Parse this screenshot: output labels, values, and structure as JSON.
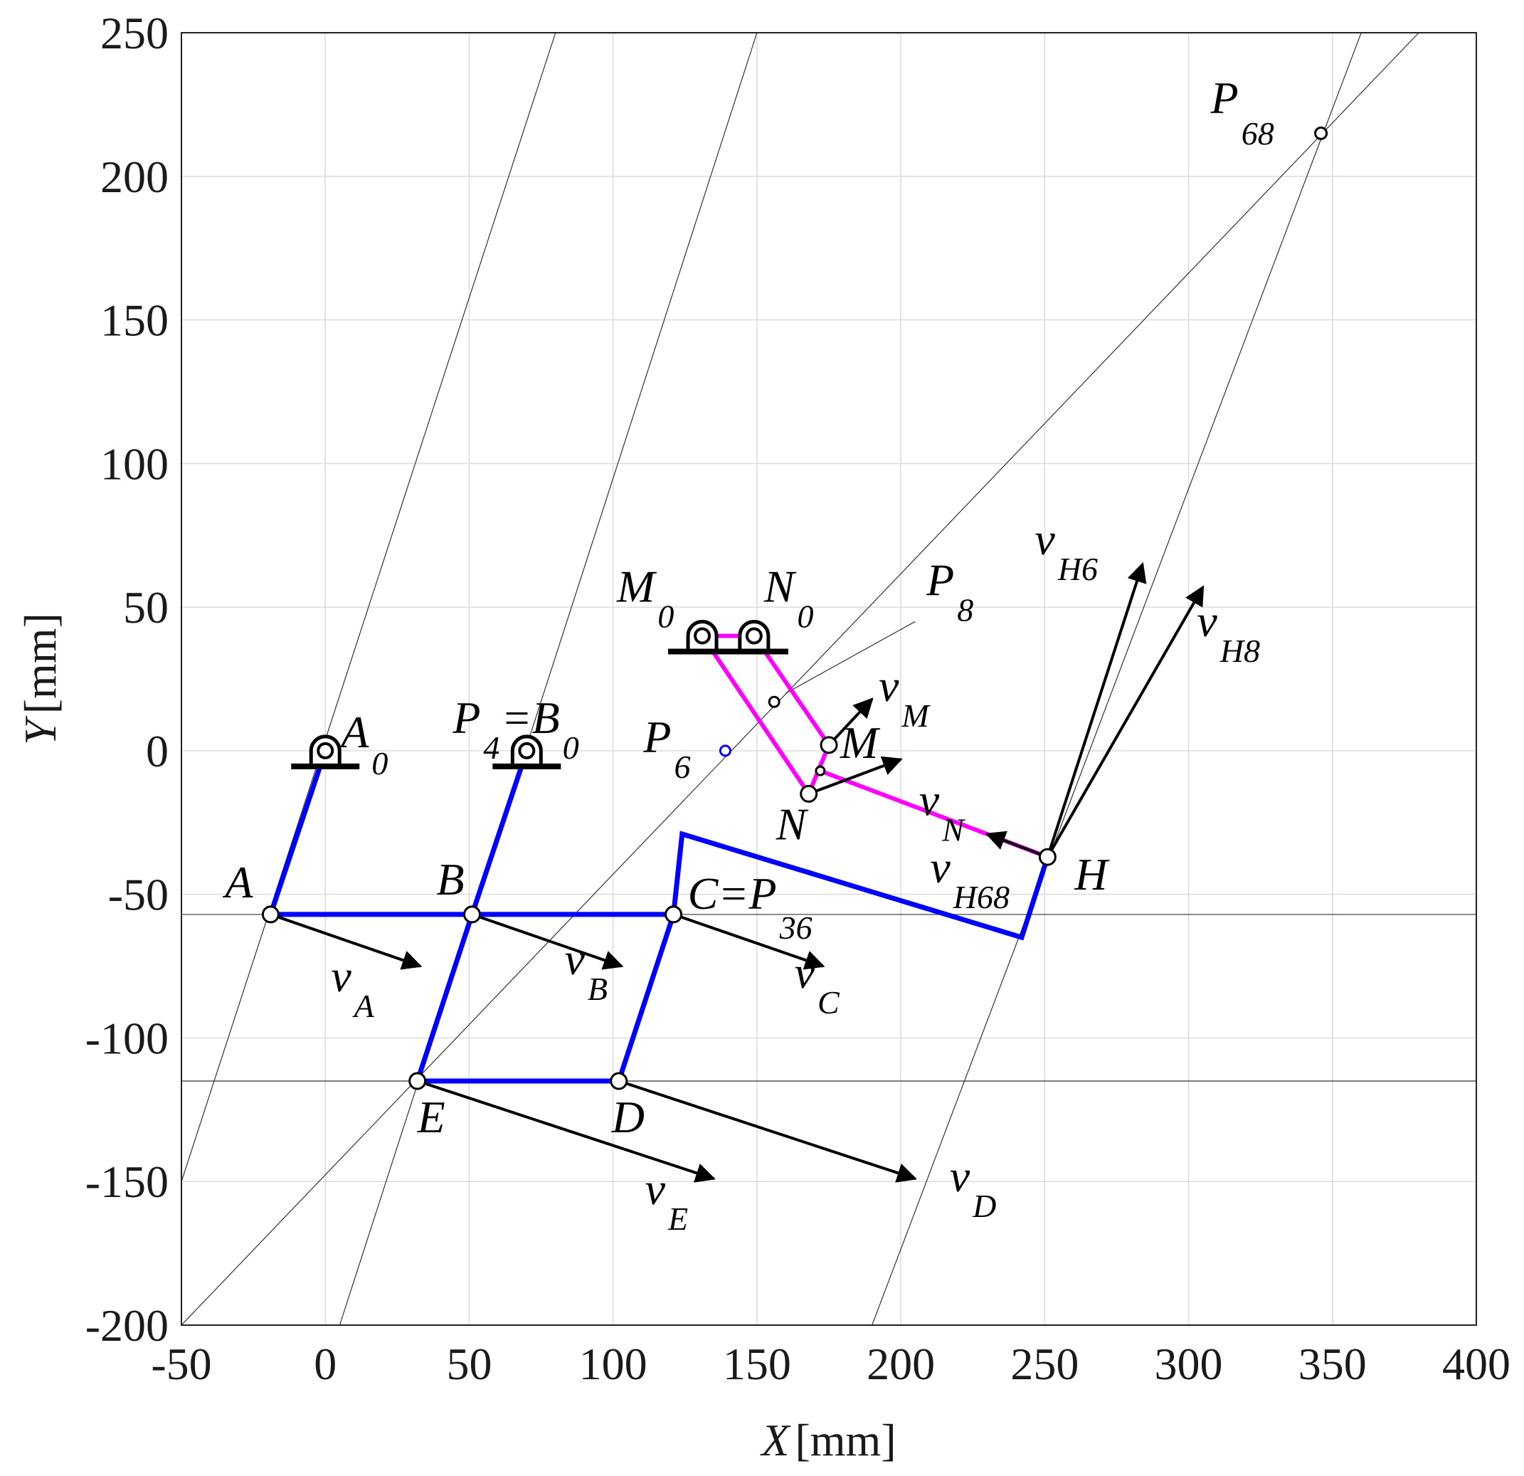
{
  "axes": {
    "xlabel_var": "X",
    "xlabel_unit": "[mm]",
    "ylabel_var": "Y",
    "ylabel_unit": "[mm]",
    "xlim": [
      -50,
      400
    ],
    "ylim": [
      -200,
      250
    ],
    "xticks": [
      -50,
      0,
      50,
      100,
      150,
      200,
      250,
      300,
      350,
      400
    ],
    "yticks": [
      -200,
      -150,
      -100,
      -50,
      0,
      50,
      100,
      150,
      200,
      250
    ],
    "grid": true
  },
  "colors": {
    "link": "#0000ff",
    "magenta": "#ff00ff",
    "black": "#000000",
    "construction": "#333333"
  },
  "points": {
    "A0": [
      0,
      0
    ],
    "B0": [
      70,
      0
    ],
    "A": [
      -19,
      -57
    ],
    "B": [
      51,
      -57
    ],
    "C": [
      121,
      -57
    ],
    "E": [
      32,
      -115
    ],
    "D": [
      102,
      -115
    ],
    "H": [
      251,
      -37
    ],
    "M0": [
      131,
      40
    ],
    "N0": [
      149,
      40
    ],
    "M": [
      175,
      2
    ],
    "N": [
      168,
      -15
    ],
    "P8": [
      156,
      17
    ],
    "P6": [
      139,
      0
    ],
    "P68": [
      346,
      215
    ],
    "Cx": [
      124,
      -29
    ],
    "Dq": [
      242,
      -65
    ]
  },
  "labels": [
    {
      "id": "A0",
      "main": "A",
      "sub": "0",
      "at": [
        0,
        0
      ]
    },
    {
      "id": "P4B0",
      "main": "P",
      "sub": "4",
      "rest": "=B",
      "sub2": "0",
      "at": [
        70,
        0
      ]
    },
    {
      "id": "M0",
      "main": "M",
      "sub": "0",
      "at": [
        131,
        40
      ]
    },
    {
      "id": "N0",
      "main": "N",
      "sub": "0",
      "at": [
        149,
        40
      ]
    },
    {
      "id": "P8",
      "main": "P",
      "sub": "8",
      "at": [
        156,
        17
      ]
    },
    {
      "id": "P6",
      "main": "P",
      "sub": "6",
      "at": [
        139,
        0
      ]
    },
    {
      "id": "P68",
      "main": "P",
      "sub": "68",
      "at": [
        346,
        215
      ]
    },
    {
      "id": "A",
      "main": "A",
      "sub": "",
      "at": [
        -19,
        -57
      ]
    },
    {
      "id": "B",
      "main": "B",
      "sub": "",
      "at": [
        51,
        -57
      ]
    },
    {
      "id": "CP36",
      "main": "C=P",
      "sub": "36",
      "at": [
        121,
        -57
      ]
    },
    {
      "id": "E",
      "main": "E",
      "sub": "",
      "at": [
        32,
        -115
      ]
    },
    {
      "id": "D",
      "main": "D",
      "sub": "",
      "at": [
        102,
        -115
      ]
    },
    {
      "id": "H",
      "main": "H",
      "sub": "",
      "at": [
        251,
        -37
      ]
    },
    {
      "id": "M",
      "main": "M",
      "sub": "",
      "at": [
        175,
        2
      ]
    },
    {
      "id": "N",
      "main": "N",
      "sub": "",
      "at": [
        168,
        -15
      ]
    },
    {
      "id": "vA",
      "main": "v",
      "sub": "A",
      "at": [
        -19,
        -57
      ]
    },
    {
      "id": "vB",
      "main": "v",
      "sub": "B",
      "at": [
        51,
        -57
      ]
    },
    {
      "id": "vC",
      "main": "v",
      "sub": "C",
      "at": [
        121,
        -57
      ]
    },
    {
      "id": "vE",
      "main": "v",
      "sub": "E",
      "at": [
        32,
        -115
      ]
    },
    {
      "id": "vD",
      "main": "v",
      "sub": "D",
      "at": [
        102,
        -115
      ]
    },
    {
      "id": "vM",
      "main": "v",
      "sub": "M",
      "at": [
        175,
        2
      ]
    },
    {
      "id": "vN",
      "main": "v",
      "sub": "N",
      "at": [
        168,
        -15
      ]
    },
    {
      "id": "vH6",
      "main": "v",
      "sub": "H6",
      "at": [
        251,
        -37
      ]
    },
    {
      "id": "vH8",
      "main": "v",
      "sub": "H8",
      "at": [
        251,
        -37
      ]
    },
    {
      "id": "vH68",
      "main": "v",
      "sub": "H68",
      "at": [
        251,
        -37
      ]
    }
  ],
  "vectors": [
    {
      "id": "vA",
      "from": [
        -19,
        -57
      ],
      "to": [
        33,
        -75
      ]
    },
    {
      "id": "vB",
      "from": [
        51,
        -57
      ],
      "to": [
        103,
        -75
      ]
    },
    {
      "id": "vC",
      "from": [
        121,
        -57
      ],
      "to": [
        173,
        -75
      ]
    },
    {
      "id": "vE",
      "from": [
        32,
        -115
      ],
      "to": [
        135,
        -149
      ]
    },
    {
      "id": "vD",
      "from": [
        102,
        -115
      ],
      "to": [
        205,
        -149
      ]
    },
    {
      "id": "vM",
      "from": [
        175,
        2
      ],
      "to": [
        190,
        18
      ]
    },
    {
      "id": "vN",
      "from": [
        168,
        -15
      ],
      "to": [
        200,
        -3
      ]
    },
    {
      "id": "vH6",
      "from": [
        251,
        -37
      ],
      "to": [
        284,
        65
      ]
    },
    {
      "id": "vH8",
      "from": [
        251,
        -37
      ],
      "to": [
        305,
        57
      ]
    },
    {
      "id": "vH68",
      "from": [
        251,
        -37
      ],
      "to": [
        230,
        -29
      ]
    }
  ],
  "construction_lines": [
    {
      "from": [
        -50,
        -150
      ],
      "to": [
        80,
        250
      ]
    },
    {
      "from": [
        5,
        -200
      ],
      "to": [
        150,
        250
      ]
    },
    {
      "from": [
        -50,
        -200
      ],
      "to": [
        380,
        250
      ]
    },
    {
      "from": [
        190,
        -200
      ],
      "to": [
        360,
        250
      ]
    },
    {
      "from": [
        -50,
        -115
      ],
      "to": [
        400,
        -115
      ]
    },
    {
      "from": [
        -50,
        -57
      ],
      "to": [
        400,
        -57
      ]
    },
    {
      "from": [
        160,
        20
      ],
      "to": [
        205,
        45
      ]
    }
  ]
}
